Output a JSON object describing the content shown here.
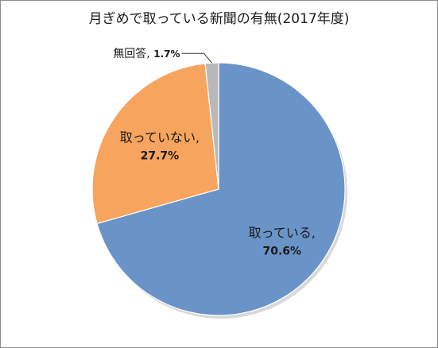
{
  "chart_data": {
    "type": "pie",
    "title": "月ぎめで取っている新聞の有無(2017年度)",
    "slices": [
      {
        "name": "取っている",
        "value": 70.6,
        "label": "70.6%",
        "color": "#6a93c7"
      },
      {
        "name": "取っていない",
        "value": 27.7,
        "label": "27.7%",
        "color": "#f7a45e"
      },
      {
        "name": "無回答",
        "value": 1.7,
        "label": "1.7%",
        "color": "#b9b9b9"
      }
    ],
    "start_angle_deg": 0,
    "direction": "clockwise",
    "legend": "none"
  }
}
